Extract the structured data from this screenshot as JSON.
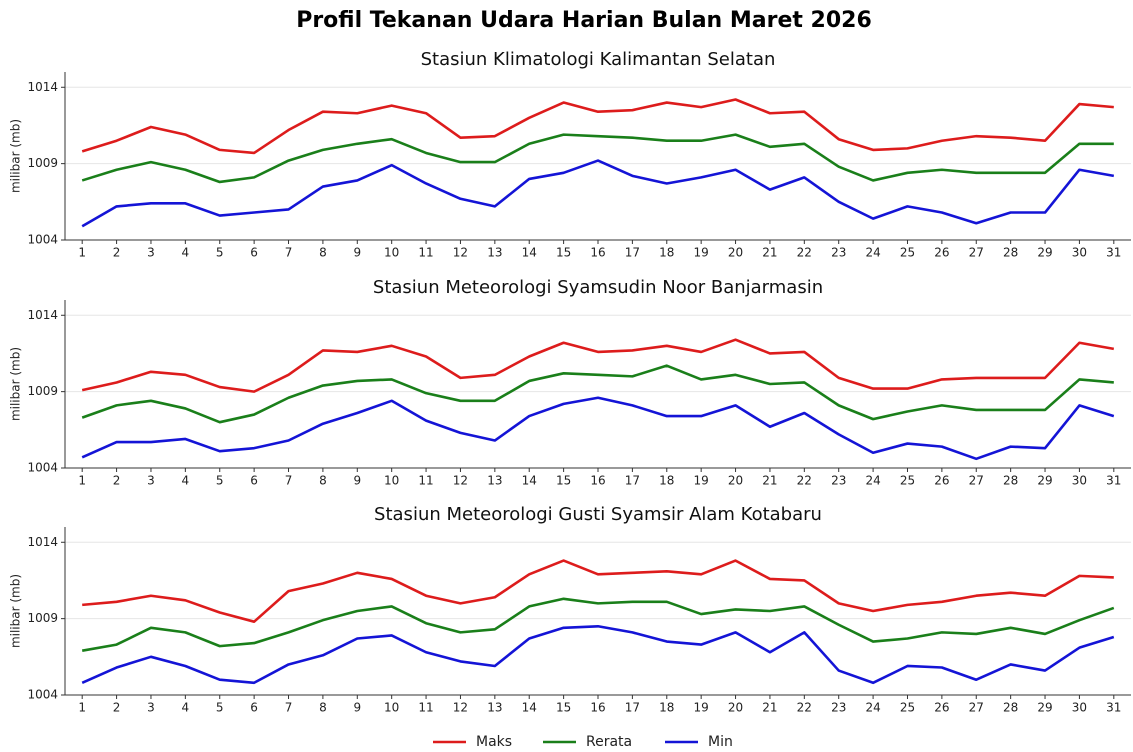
{
  "title": "Profil Tekanan Udara Harian Bulan Maret 2026",
  "legend": "lower center",
  "chart_data": [
    {
      "type": "line",
      "title": "Stasiun Klimatologi Kalimantan Selatan",
      "ylabel": "milibar (mb)",
      "x": [
        1,
        2,
        3,
        4,
        5,
        6,
        7,
        8,
        9,
        10,
        11,
        12,
        13,
        14,
        15,
        16,
        17,
        18,
        19,
        20,
        21,
        22,
        23,
        24,
        25,
        26,
        27,
        28,
        29,
        30,
        31
      ],
      "xlim": [
        0.5,
        31.5
      ],
      "xticks": [
        1,
        2,
        3,
        4,
        5,
        6,
        7,
        8,
        9,
        10,
        11,
        12,
        13,
        14,
        15,
        16,
        17,
        18,
        19,
        20,
        21,
        22,
        23,
        24,
        25,
        26,
        27,
        28,
        29,
        30,
        31
      ],
      "ylim": [
        1004,
        1015
      ],
      "yticks": [
        1004,
        1009,
        1014
      ],
      "grid": true,
      "series": [
        {
          "name": "Maks",
          "color": "#dd1c1c",
          "values": [
            1009.8,
            1010.5,
            1011.4,
            1010.9,
            1009.9,
            1009.7,
            1011.2,
            1012.4,
            1012.3,
            1012.8,
            1012.3,
            1010.7,
            1010.8,
            1012.0,
            1013.0,
            1012.4,
            1012.5,
            1013.0,
            1012.7,
            1013.2,
            1012.3,
            1012.4,
            1010.6,
            1009.9,
            1010.0,
            1010.5,
            1010.8,
            1010.7,
            1010.5,
            1012.9,
            1012.7
          ]
        },
        {
          "name": "Rerata",
          "color": "#1a7f1a",
          "values": [
            1007.9,
            1008.6,
            1009.1,
            1008.6,
            1007.8,
            1008.1,
            1009.2,
            1009.9,
            1010.3,
            1010.6,
            1009.7,
            1009.1,
            1009.1,
            1010.3,
            1010.9,
            1010.8,
            1010.7,
            1010.5,
            1010.5,
            1010.9,
            1010.1,
            1010.3,
            1008.8,
            1007.9,
            1008.4,
            1008.6,
            1008.4,
            1008.4,
            1008.4,
            1010.3,
            1010.3
          ]
        },
        {
          "name": "Min",
          "color": "#1414d6",
          "values": [
            1004.9,
            1006.2,
            1006.4,
            1006.4,
            1005.6,
            1005.8,
            1006.0,
            1007.5,
            1007.9,
            1008.9,
            1007.7,
            1006.7,
            1006.2,
            1008.0,
            1008.4,
            1009.2,
            1008.2,
            1007.7,
            1008.1,
            1008.6,
            1007.3,
            1008.1,
            1006.5,
            1005.4,
            1006.2,
            1005.8,
            1005.1,
            1005.8,
            1005.8,
            1008.6,
            1008.2
          ]
        }
      ]
    },
    {
      "type": "line",
      "title": "Stasiun Meteorologi Syamsudin Noor Banjarmasin",
      "ylabel": "milibar (mb)",
      "x": [
        1,
        2,
        3,
        4,
        5,
        6,
        7,
        8,
        9,
        10,
        11,
        12,
        13,
        14,
        15,
        16,
        17,
        18,
        19,
        20,
        21,
        22,
        23,
        24,
        25,
        26,
        27,
        28,
        29,
        30,
        31
      ],
      "xlim": [
        0.5,
        31.5
      ],
      "xticks": [
        1,
        2,
        3,
        4,
        5,
        6,
        7,
        8,
        9,
        10,
        11,
        12,
        13,
        14,
        15,
        16,
        17,
        18,
        19,
        20,
        21,
        22,
        23,
        24,
        25,
        26,
        27,
        28,
        29,
        30,
        31
      ],
      "ylim": [
        1004,
        1015
      ],
      "yticks": [
        1004,
        1009,
        1014
      ],
      "grid": true,
      "series": [
        {
          "name": "Maks",
          "color": "#dd1c1c",
          "values": [
            1009.1,
            1009.6,
            1010.3,
            1010.1,
            1009.3,
            1009.0,
            1010.1,
            1011.7,
            1011.6,
            1012.0,
            1011.3,
            1009.9,
            1010.1,
            1011.3,
            1012.2,
            1011.6,
            1011.7,
            1012.0,
            1011.6,
            1012.4,
            1011.5,
            1011.6,
            1009.9,
            1009.2,
            1009.2,
            1009.8,
            1009.9,
            1009.9,
            1009.9,
            1012.2,
            1011.8
          ]
        },
        {
          "name": "Rerata",
          "color": "#1a7f1a",
          "values": [
            1007.3,
            1008.1,
            1008.4,
            1007.9,
            1007.0,
            1007.5,
            1008.6,
            1009.4,
            1009.7,
            1009.8,
            1008.9,
            1008.4,
            1008.4,
            1009.7,
            1010.2,
            1010.1,
            1010.0,
            1010.7,
            1009.8,
            1010.1,
            1009.5,
            1009.6,
            1008.1,
            1007.2,
            1007.7,
            1008.1,
            1007.8,
            1007.8,
            1007.8,
            1009.8,
            1009.6
          ]
        },
        {
          "name": "Min",
          "color": "#1414d6",
          "values": [
            1004.7,
            1005.7,
            1005.7,
            1005.9,
            1005.1,
            1005.3,
            1005.8,
            1006.9,
            1007.6,
            1008.4,
            1007.1,
            1006.3,
            1005.8,
            1007.4,
            1008.2,
            1008.6,
            1008.1,
            1007.4,
            1007.4,
            1008.1,
            1006.7,
            1007.6,
            1006.2,
            1005.0,
            1005.6,
            1005.4,
            1004.6,
            1005.4,
            1005.3,
            1008.1,
            1007.4
          ]
        }
      ]
    },
    {
      "type": "line",
      "title": "Stasiun Meteorologi Gusti Syamsir Alam Kotabaru",
      "ylabel": "milibar (mb)",
      "x": [
        1,
        2,
        3,
        4,
        5,
        6,
        7,
        8,
        9,
        10,
        11,
        12,
        13,
        14,
        15,
        16,
        17,
        18,
        19,
        20,
        21,
        22,
        23,
        24,
        25,
        26,
        27,
        28,
        29,
        30,
        31
      ],
      "xlim": [
        0.5,
        31.5
      ],
      "xticks": [
        1,
        2,
        3,
        4,
        5,
        6,
        7,
        8,
        9,
        10,
        11,
        12,
        13,
        14,
        15,
        16,
        17,
        18,
        19,
        20,
        21,
        22,
        23,
        24,
        25,
        26,
        27,
        28,
        29,
        30,
        31
      ],
      "ylim": [
        1004,
        1015
      ],
      "yticks": [
        1004,
        1009,
        1014
      ],
      "grid": true,
      "series": [
        {
          "name": "Maks",
          "color": "#dd1c1c",
          "values": [
            1009.9,
            1010.1,
            1010.5,
            1010.2,
            1009.4,
            1008.8,
            1010.8,
            1011.3,
            1012.0,
            1011.6,
            1010.5,
            1010.0,
            1010.4,
            1011.9,
            1012.8,
            1011.9,
            1012.0,
            1012.1,
            1011.9,
            1012.8,
            1011.6,
            1011.5,
            1010.0,
            1009.5,
            1009.9,
            1010.1,
            1010.5,
            1010.7,
            1010.5,
            1011.8,
            1011.7
          ]
        },
        {
          "name": "Rerata",
          "color": "#1a7f1a",
          "values": [
            1006.9,
            1007.3,
            1008.4,
            1008.1,
            1007.2,
            1007.4,
            1008.1,
            1008.9,
            1009.5,
            1009.8,
            1008.7,
            1008.1,
            1008.3,
            1009.8,
            1010.3,
            1010.0,
            1010.1,
            1010.1,
            1009.3,
            1009.6,
            1009.5,
            1009.8,
            1008.6,
            1007.5,
            1007.7,
            1008.1,
            1008.0,
            1008.4,
            1008.0,
            1008.9,
            1009.7
          ]
        },
        {
          "name": "Min",
          "color": "#1414d6",
          "values": [
            1004.8,
            1005.8,
            1006.5,
            1005.9,
            1005.0,
            1004.8,
            1006.0,
            1006.6,
            1007.7,
            1007.9,
            1006.8,
            1006.2,
            1005.9,
            1007.7,
            1008.4,
            1008.5,
            1008.1,
            1007.5,
            1007.3,
            1008.1,
            1006.8,
            1008.1,
            1005.6,
            1004.8,
            1005.9,
            1005.8,
            1005.0,
            1006.0,
            1005.6,
            1007.1,
            1007.8
          ]
        }
      ]
    }
  ]
}
